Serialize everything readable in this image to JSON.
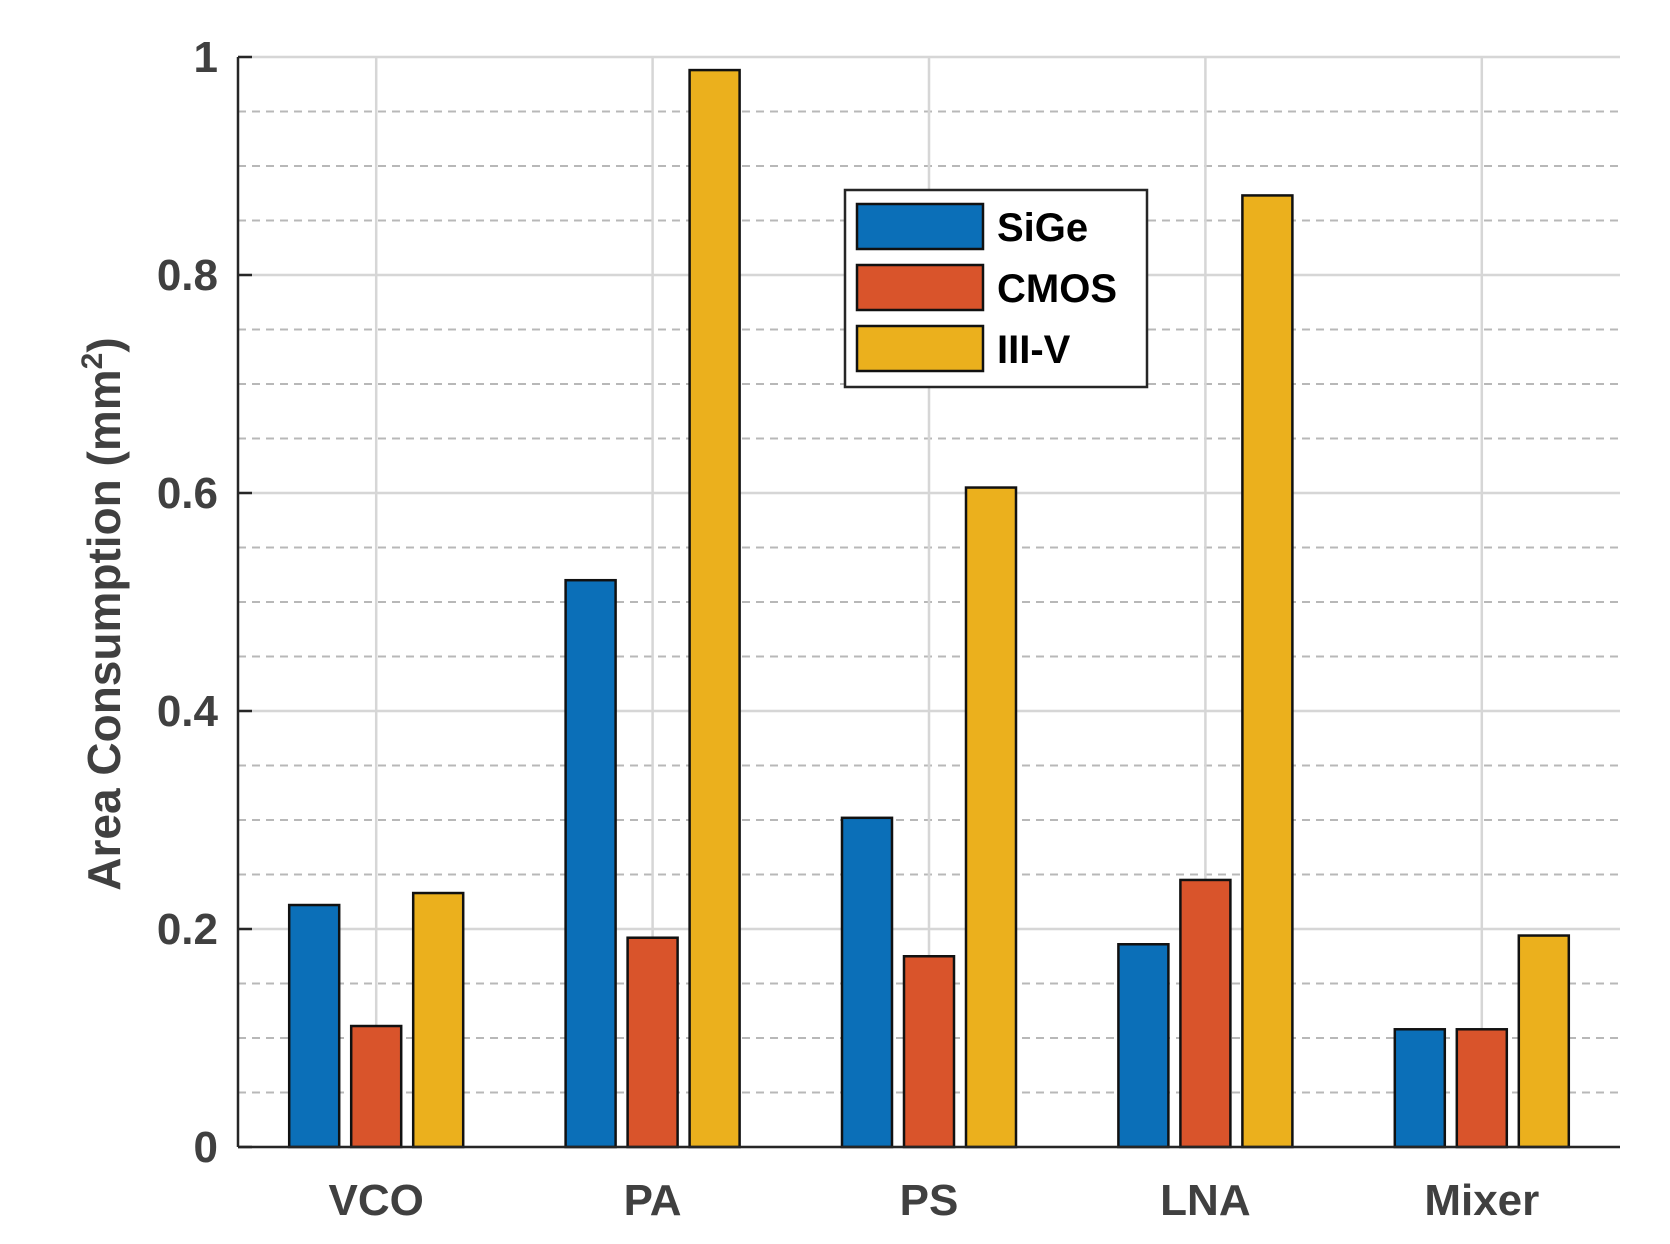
{
  "chart_data": {
    "type": "bar",
    "title": "",
    "xlabel": "",
    "ylabel": "Area Consumption (mm",
    "ylabel_sup": "2",
    "ylabel_close": ")",
    "categories": [
      "VCO",
      "PA",
      "PS",
      "LNA",
      "Mixer"
    ],
    "series": [
      {
        "name": "SiGe",
        "color": "#0B6FB8",
        "values": [
          0.222,
          0.52,
          0.302,
          0.186,
          0.108
        ]
      },
      {
        "name": "CMOS",
        "color": "#D9542B",
        "values": [
          0.111,
          0.192,
          0.175,
          0.245,
          0.108
        ]
      },
      {
        "name": "III-V",
        "color": "#EBB01D",
        "values": [
          0.233,
          0.988,
          0.605,
          0.873,
          0.194
        ]
      }
    ],
    "ylim": [
      0,
      1
    ],
    "yticks": [
      0,
      0.2,
      0.4,
      0.6,
      0.8,
      1
    ],
    "ytick_labels": [
      "0",
      "0.2",
      "0.4",
      "0.6",
      "0.8",
      "1"
    ],
    "grid": true,
    "minor_grid": true,
    "legend_position": "top-right-center"
  }
}
